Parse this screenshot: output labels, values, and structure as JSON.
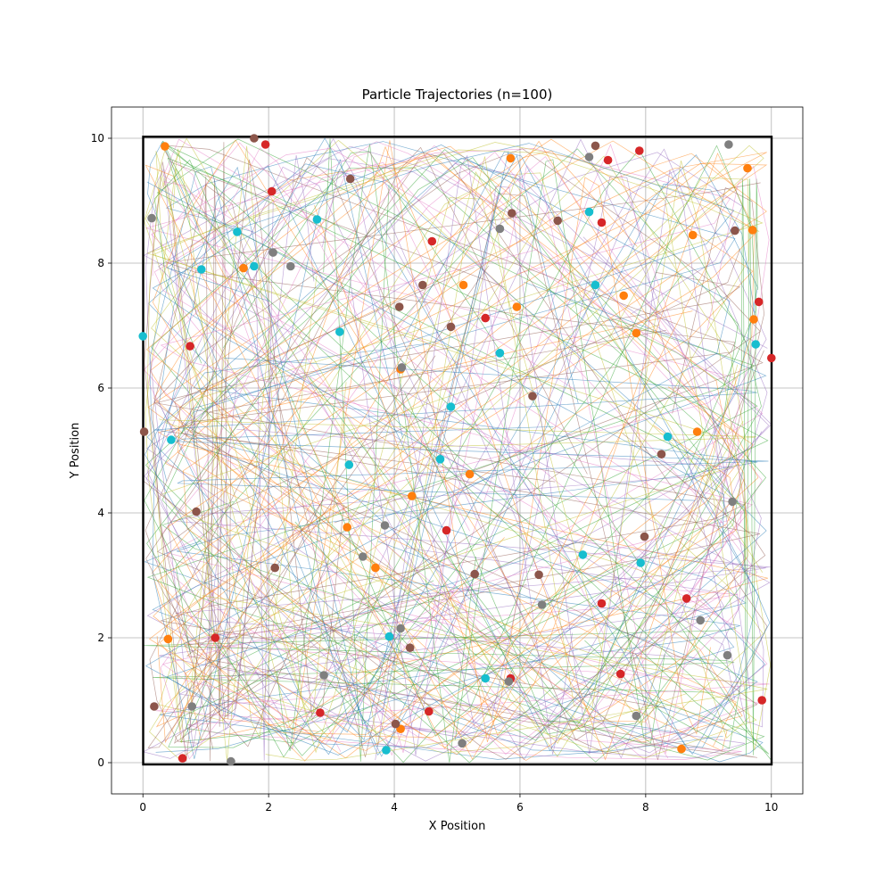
{
  "chart_data": {
    "type": "scatter",
    "title": "Particle Trajectories (n=100)",
    "xlabel": "X Position",
    "ylabel": "Y Position",
    "xlim": [
      -0.5,
      10.5
    ],
    "ylim": [
      -0.5,
      10.5
    ],
    "xticks": [
      "0",
      "2",
      "4",
      "6",
      "8",
      "10"
    ],
    "yticks": [
      "0",
      "2",
      "4",
      "6",
      "8",
      "10"
    ],
    "grid": true,
    "legend": "none",
    "boundary_box": [
      0,
      0,
      10,
      10
    ],
    "trajectory_colors": [
      "#1f77b4",
      "#2ca02c",
      "#e377c2",
      "#bcbd22",
      "#ff7f0e",
      "#9467bd",
      "#8c564b"
    ],
    "trajectory_count": 100,
    "colors": {
      "red": "#d62728",
      "orange": "#ff7f0e",
      "brown": "#8c564b",
      "gray": "#7f7f7f",
      "cyan": "#17becf"
    },
    "particles": {
      "red": [
        [
          1.95,
          9.9
        ],
        [
          2.05,
          9.15
        ],
        [
          7.4,
          9.65
        ],
        [
          7.9,
          9.8
        ],
        [
          7.3,
          8.65
        ],
        [
          4.6,
          8.35
        ],
        [
          5.45,
          7.12
        ],
        [
          9.8,
          7.38
        ],
        [
          10.0,
          6.48
        ],
        [
          0.75,
          6.67
        ],
        [
          4.83,
          3.72
        ],
        [
          7.3,
          2.55
        ],
        [
          8.65,
          2.63
        ],
        [
          1.15,
          2.0
        ],
        [
          7.6,
          1.42
        ],
        [
          5.85,
          1.35
        ],
        [
          2.82,
          0.8
        ],
        [
          4.55,
          0.82
        ],
        [
          9.85,
          1.0
        ],
        [
          0.63,
          0.07
        ]
      ],
      "orange": [
        [
          0.35,
          9.87
        ],
        [
          5.85,
          9.68
        ],
        [
          9.62,
          9.52
        ],
        [
          9.7,
          8.53
        ],
        [
          8.75,
          8.45
        ],
        [
          1.6,
          7.92
        ],
        [
          5.1,
          7.65
        ],
        [
          7.65,
          7.48
        ],
        [
          5.95,
          7.3
        ],
        [
          9.72,
          7.1
        ],
        [
          7.85,
          6.88
        ],
        [
          4.1,
          6.3
        ],
        [
          8.82,
          5.3
        ],
        [
          5.2,
          4.62
        ],
        [
          4.28,
          4.27
        ],
        [
          3.25,
          3.77
        ],
        [
          3.7,
          3.12
        ],
        [
          0.4,
          1.98
        ],
        [
          4.1,
          0.54
        ],
        [
          8.57,
          0.22
        ]
      ],
      "brown": [
        [
          1.77,
          10.0
        ],
        [
          7.2,
          9.88
        ],
        [
          3.3,
          9.35
        ],
        [
          5.87,
          8.8
        ],
        [
          6.6,
          8.68
        ],
        [
          9.42,
          8.52
        ],
        [
          4.45,
          7.65
        ],
        [
          4.08,
          7.3
        ],
        [
          4.9,
          6.98
        ],
        [
          6.2,
          5.87
        ],
        [
          0.02,
          5.3
        ],
        [
          8.25,
          4.94
        ],
        [
          0.85,
          4.02
        ],
        [
          7.98,
          3.62
        ],
        [
          2.1,
          3.12
        ],
        [
          5.28,
          3.02
        ],
        [
          6.3,
          3.01
        ],
        [
          4.25,
          1.84
        ],
        [
          0.18,
          0.9
        ],
        [
          4.02,
          0.62
        ]
      ],
      "gray": [
        [
          9.32,
          9.9
        ],
        [
          7.1,
          9.7
        ],
        [
          0.14,
          8.72
        ],
        [
          5.68,
          8.55
        ],
        [
          2.07,
          8.17
        ],
        [
          2.35,
          7.95
        ],
        [
          4.12,
          6.33
        ],
        [
          9.38,
          4.18
        ],
        [
          3.85,
          3.8
        ],
        [
          3.5,
          3.3
        ],
        [
          6.35,
          2.53
        ],
        [
          8.87,
          2.28
        ],
        [
          4.1,
          2.15
        ],
        [
          9.3,
          1.72
        ],
        [
          2.88,
          1.4
        ],
        [
          5.82,
          1.3
        ],
        [
          0.78,
          0.9
        ],
        [
          7.85,
          0.75
        ],
        [
          5.08,
          0.31
        ],
        [
          1.4,
          0.02
        ]
      ],
      "cyan": [
        [
          1.5,
          8.5
        ],
        [
          2.77,
          8.7
        ],
        [
          7.1,
          8.82
        ],
        [
          0.93,
          7.9
        ],
        [
          1.77,
          7.95
        ],
        [
          7.2,
          7.65
        ],
        [
          0.0,
          6.83
        ],
        [
          3.13,
          6.9
        ],
        [
          9.75,
          6.7
        ],
        [
          5.68,
          6.56
        ],
        [
          4.9,
          5.7
        ],
        [
          0.45,
          5.17
        ],
        [
          8.35,
          5.22
        ],
        [
          4.73,
          4.86
        ],
        [
          3.28,
          4.77
        ],
        [
          7.0,
          3.33
        ],
        [
          7.92,
          3.2
        ],
        [
          3.92,
          2.02
        ],
        [
          5.45,
          1.35
        ],
        [
          3.87,
          0.2
        ]
      ]
    }
  }
}
